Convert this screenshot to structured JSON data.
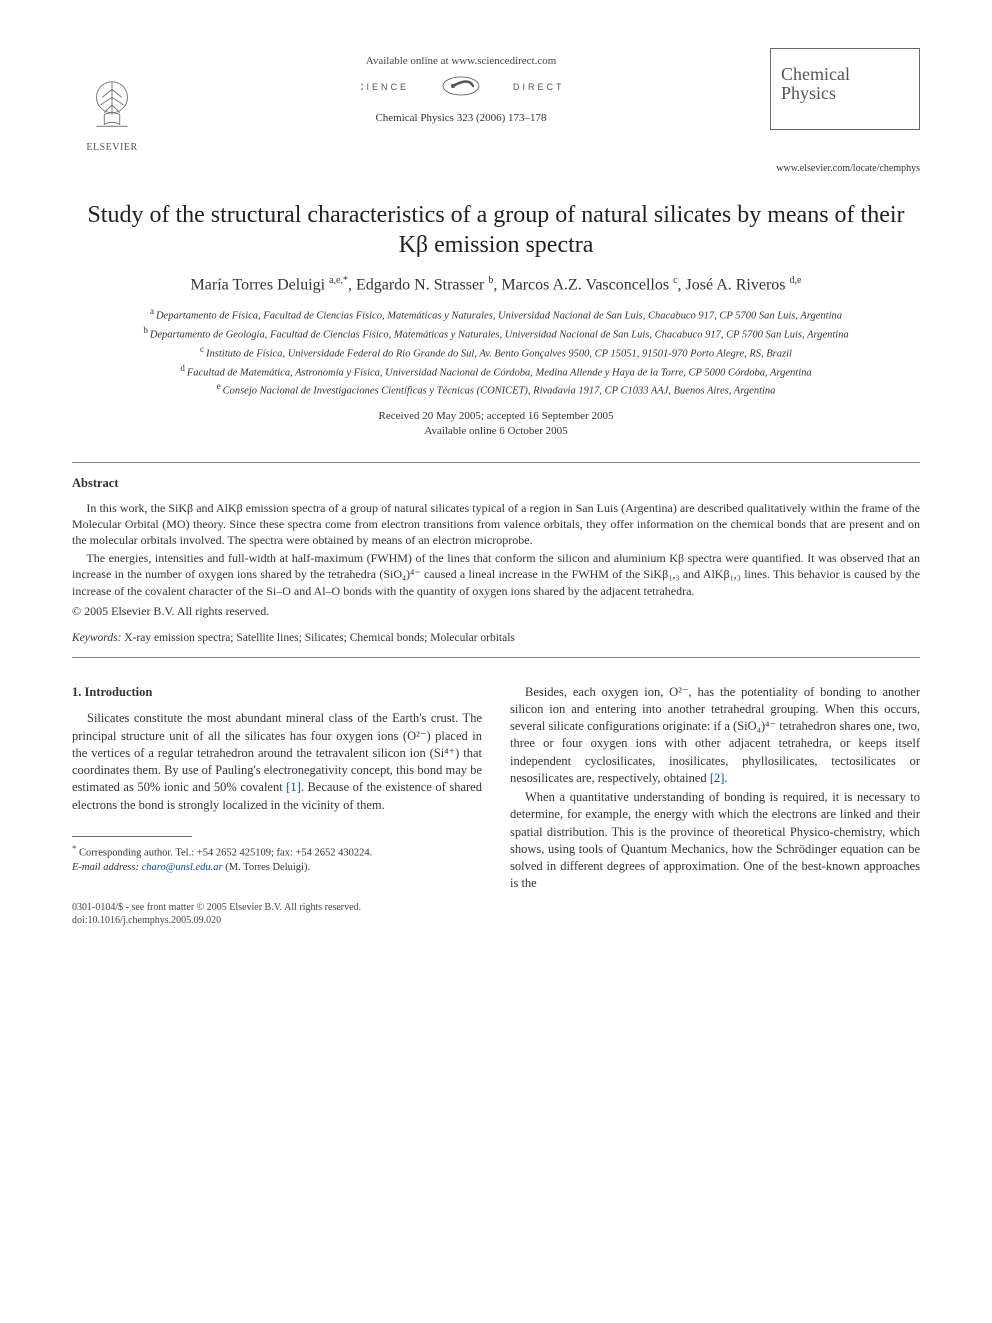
{
  "header": {
    "available": "Available online at www.sciencedirect.com",
    "sd_text_left": "SCIENCE",
    "sd_text_right": "DIRECT",
    "journal_ref": "Chemical Physics 323 (2006) 173–178",
    "elsevier": "ELSEVIER",
    "journal_box_line1": "Chemical",
    "journal_box_line2": "Physics",
    "journal_url": "www.elsevier.com/locate/chemphys"
  },
  "title": "Study of the structural characteristics of a group of natural silicates by means of their Kβ emission spectra",
  "authors_html": "María Torres Deluigi <sup>a,e,*</sup>, Edgardo N. Strasser <sup>b</sup>, Marcos A.Z. Vasconcellos <sup>c</sup>, José A. Riveros <sup>d,e</sup>",
  "affiliations": [
    {
      "sup": "a",
      "text": "Departamento de Física, Facultad de Ciencias Físico, Matemáticas y Naturales, Universidad Nacional de San Luis, Chacabuco 917, CP 5700 San Luis, Argentina"
    },
    {
      "sup": "b",
      "text": "Departamento de Geología, Facultad de Ciencias Físico, Matemáticas y Naturales, Universidad Nacional de San Luis, Chacabuco 917, CP 5700 San Luis, Argentina"
    },
    {
      "sup": "c",
      "text": "Instituto de Física, Universidade Federal do Rio Grande do Sul, Av. Bento Gonçalves 9500, CP 15051, 91501-970 Porto Alegre, RS, Brazil"
    },
    {
      "sup": "d",
      "text": "Facultad de Matemática, Astronomía y Física, Universidad Nacional de Córdoba, Medina Allende y Haya de la Torre, CP 5000 Córdoba, Argentina"
    },
    {
      "sup": "e",
      "text": "Consejo Nacional de Investigaciones Científicas y Técnicas (CONICET), Rivadavia 1917, CP C1033 AAJ, Buenos Aires, Argentina"
    }
  ],
  "dates": {
    "received": "Received 20 May 2005; accepted 16 September 2005",
    "online": "Available online 6 October 2005"
  },
  "abstract": {
    "heading": "Abstract",
    "p1": "In this work, the SiKβ and AlKβ emission spectra of a group of natural silicates typical of a region in San Luis (Argentina) are described qualitatively within the frame of the Molecular Orbital (MO) theory. Since these spectra come from electron transitions from valence orbitals, they offer information on the chemical bonds that are present and on the molecular orbitals involved. The spectra were obtained by means of an electron microprobe.",
    "p2": "The energies, intensities and full-width at half-maximum (FWHM) of the lines that conform the silicon and aluminium Kβ spectra were quantified. It was observed that an increase in the number of oxygen ions shared by the tetrahedra (SiO₄)⁴⁻ caused a lineal increase in the FWHM of the SiKβ₁,₃ and AlKβ₁,₃ lines. This behavior is caused by the increase of the covalent character of the Si–O and Al–O bonds with the quantity of oxygen ions shared by the adjacent tetrahedra.",
    "copyright": "© 2005 Elsevier B.V. All rights reserved."
  },
  "keywords": {
    "label": "Keywords:",
    "text": " X-ray emission spectra; Satellite lines; Silicates; Chemical bonds; Molecular orbitals"
  },
  "intro": {
    "heading": "1. Introduction",
    "left_p1_a": "Silicates constitute the most abundant mineral class of the Earth's crust. The principal structure unit of all the silicates has four oxygen ions (O²⁻) placed in the vertices of a regular tetrahedron around the tetravalent silicon ion (Si⁴⁺) that coordinates them. By use of Pauling's electronegativity concept, this bond may be estimated as 50% ionic and 50% covalent ",
    "ref1": "[1]",
    "left_p1_b": ". Because of the existence of shared electrons the bond is strongly localized in the vicinity of them.",
    "right_p1_a": "Besides, each oxygen ion, O²⁻, has the potentiality of bonding to another silicon ion and entering into another tetrahedral grouping. When this occurs, several silicate configurations originate: if a (SiO₄)⁴⁻ tetrahedron shares one, two, three or four oxygen ions with other adjacent tetrahedra, or keeps itself independent cyclosilicates, inosilicates, phyllosilicates, tectosilicates or nesosilicates are, respectively, obtained ",
    "ref2": "[2]",
    "right_p1_b": ".",
    "right_p2": "When a quantitative understanding of bonding is required, it is necessary to determine, for example, the energy with which the electrons are linked and their spatial distribution. This is the province of theoretical Physico-chemistry, which shows, using tools of Quantum Mechanics, how the Schrödinger equation can be solved in different degrees of approximation. One of the best-known approaches is the"
  },
  "footnote": {
    "corr": "Corresponding author. Tel.: +54 2652 425109; fax: +54 2652 430224.",
    "email_label": "E-mail address:",
    "email": "charo@unsl.edu.ar",
    "email_tail": " (M. Torres Deluigi)."
  },
  "footer": {
    "issn": "0301-0104/$ - see front matter © 2005 Elsevier B.V. All rights reserved.",
    "doi": "doi:10.1016/j.chemphys.2005.09.020"
  },
  "colors": {
    "link": "#0047c2",
    "text": "#333333",
    "rule": "#888888"
  }
}
